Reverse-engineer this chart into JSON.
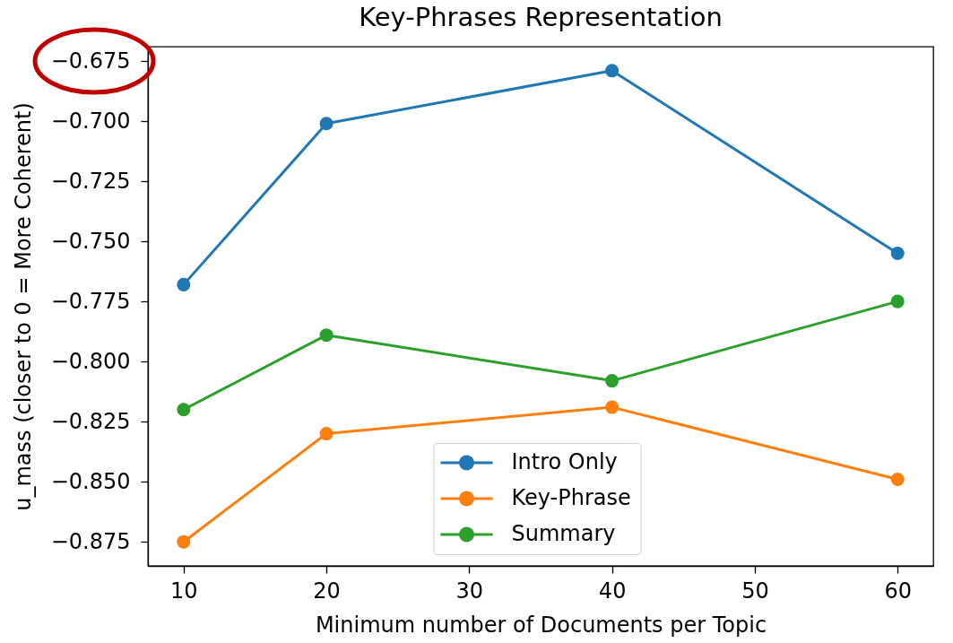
{
  "chart_data": {
    "type": "line",
    "title": "Key-Phrases Representation",
    "xlabel": "Minimum number of Documents per Topic",
    "ylabel": "u_mass (closer to 0 = More Coherent)",
    "x": [
      10,
      20,
      40,
      60
    ],
    "series": [
      {
        "name": "Intro Only",
        "color": "#1f77b4",
        "values": [
          -0.768,
          -0.701,
          -0.679,
          -0.755
        ]
      },
      {
        "name": "Key-Phrase",
        "color": "#ff7f0e",
        "values": [
          -0.875,
          -0.83,
          -0.819,
          -0.849
        ]
      },
      {
        "name": "Summary",
        "color": "#2ca02c",
        "values": [
          -0.82,
          -0.789,
          -0.808,
          -0.775
        ]
      }
    ],
    "xlim": [
      7.5,
      62.5
    ],
    "xticks": [
      10,
      20,
      30,
      40,
      50,
      60
    ],
    "ylim": [
      -0.885,
      -0.669
    ],
    "yticks": [
      -0.875,
      {
        "value": -0.85,
        "label": "−0.850"
      },
      -0.825,
      {
        "value": -0.8,
        "label": "−0.800"
      },
      -0.775,
      {
        "value": -0.75,
        "label": "−0.750"
      },
      -0.725,
      {
        "value": -0.7,
        "label": "−0.700"
      },
      -0.675
    ],
    "marker": "circle",
    "line_style": "solid",
    "legend": "bottom"
  }
}
